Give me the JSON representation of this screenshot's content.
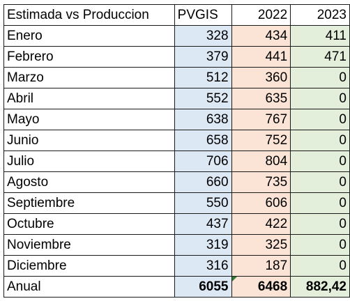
{
  "header": {
    "label": "Estimada vs Produccion",
    "col_pvgis": "PVGIS",
    "col_2022": "2022",
    "col_2023": "2023"
  },
  "rows": [
    {
      "month": "Enero",
      "pvgis": "328",
      "y2022": "434",
      "y2023": "411"
    },
    {
      "month": "Febrero",
      "pvgis": "379",
      "y2022": "441",
      "y2023": "471"
    },
    {
      "month": "Marzo",
      "pvgis": "512",
      "y2022": "360",
      "y2023": "0"
    },
    {
      "month": "Abril",
      "pvgis": "552",
      "y2022": "635",
      "y2023": "0"
    },
    {
      "month": "Mayo",
      "pvgis": "638",
      "y2022": "767",
      "y2023": "0"
    },
    {
      "month": "Junio",
      "pvgis": "658",
      "y2022": "752",
      "y2023": "0"
    },
    {
      "month": "Julio",
      "pvgis": "706",
      "y2022": "804",
      "y2023": "0"
    },
    {
      "month": "Agosto",
      "pvgis": "660",
      "y2022": "735",
      "y2023": "0"
    },
    {
      "month": "Septiembre",
      "pvgis": "550",
      "y2022": "606",
      "y2023": "0"
    },
    {
      "month": "Octubre",
      "pvgis": "437",
      "y2022": "422",
      "y2023": "0"
    },
    {
      "month": "Noviembre",
      "pvgis": "319",
      "y2022": "325",
      "y2023": "0"
    },
    {
      "month": "Diciembre",
      "pvgis": "316",
      "y2022": "187",
      "y2023": "0"
    }
  ],
  "total": {
    "label": "Anual",
    "pvgis": "6055",
    "y2022": "6468",
    "y2023": "882,42"
  },
  "colors": {
    "pvgis_fill": "#dde8f5",
    "y2022_fill": "#fbe4d6",
    "y2023_fill": "#e3efda",
    "error_indicator": "#2e7d32"
  }
}
